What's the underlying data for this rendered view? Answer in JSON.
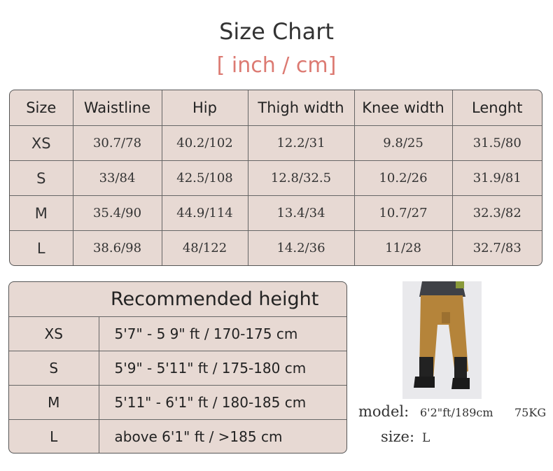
{
  "header": {
    "title": "Size Chart",
    "subtitle": "[ inch / cm]"
  },
  "size_table": {
    "columns": [
      "Size",
      "Waistline",
      "Hip",
      "Thigh width",
      "Knee width",
      "Lenght"
    ],
    "rows": [
      [
        "XS",
        "30.7/78",
        "40.2/102",
        "12.2/31",
        "9.8/25",
        "31.5/80"
      ],
      [
        "S",
        "33/84",
        "42.5/108",
        "12.8/32.5",
        "10.2/26",
        "31.9/81"
      ],
      [
        "M",
        "35.4/90",
        "44.9/114",
        "13.4/34",
        "10.7/27",
        "32.3/82"
      ],
      [
        "L",
        "38.6/98",
        "48/122",
        "14.2/36",
        "11/28",
        "32.7/83"
      ]
    ]
  },
  "height_table": {
    "title": "Recommended height",
    "rows": [
      [
        "XS",
        "5'7\" - 5 9\" ft / 170-175 cm"
      ],
      [
        "S",
        "5'9\" - 5'11\" ft / 175-180 cm"
      ],
      [
        "M",
        "5'11\" - 6'1\" ft / 180-185 cm"
      ],
      [
        "L",
        "above 6'1\" ft / >185 cm"
      ]
    ]
  },
  "model": {
    "label": "model:",
    "height": "6'2\"ft/189cm",
    "weight": "75KG",
    "size_label": "size:",
    "size": "L"
  }
}
